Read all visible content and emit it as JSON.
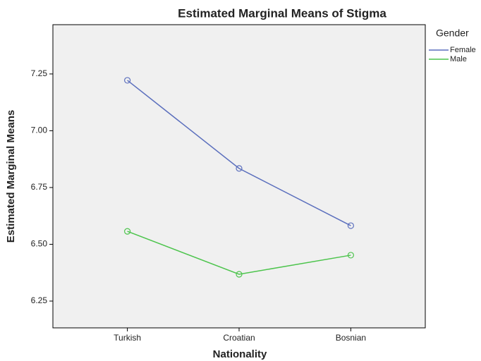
{
  "chart_data": {
    "type": "line",
    "title": "Estimated Marginal Means of Stigma",
    "x_label": "Nationality",
    "y_label": "Estimated Marginal Means",
    "legend_title": "Gender",
    "legend_position": "right",
    "categories": [
      "Turkish",
      "Croatian",
      "Bosnian"
    ],
    "series": [
      {
        "name": "Female",
        "color": "#5b6fbd",
        "values": [
          7.222,
          6.834,
          6.582
        ]
      },
      {
        "name": "Male",
        "color": "#4cc44c",
        "values": [
          6.557,
          6.368,
          6.452
        ]
      }
    ],
    "ylim": [
      6.132,
      7.467
    ],
    "yticks": [
      {
        "value": 6.25,
        "label": "6.25"
      },
      {
        "value": 6.5,
        "label": "6.50"
      },
      {
        "value": 6.75,
        "label": "6.75"
      },
      {
        "value": 7,
        "label": "7.00"
      },
      {
        "value": 7.25,
        "label": "7.25"
      }
    ],
    "grid": false
  }
}
